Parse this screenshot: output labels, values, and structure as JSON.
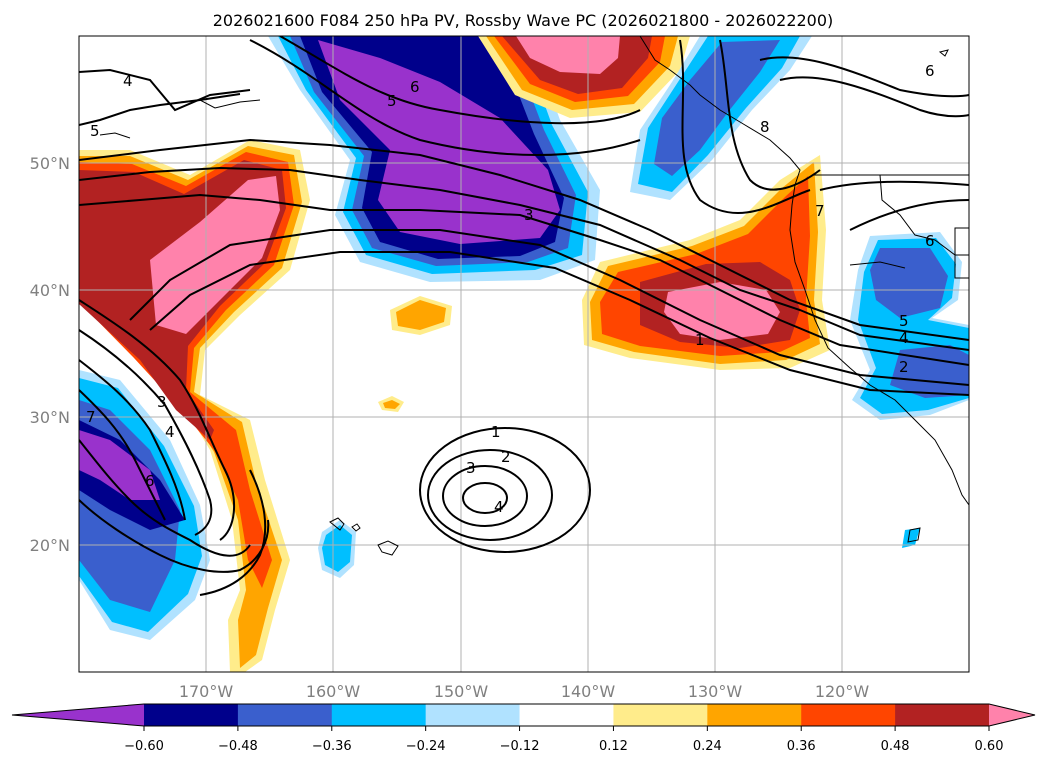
{
  "title": "2026021600 F084 250 hPa PV, Rossby Wave PC (2026021800 - 2026022200)",
  "map": {
    "lon_range": [
      -180,
      -110
    ],
    "lat_range": [
      10,
      60
    ],
    "lon_ticks": [
      "170°W",
      "160°W",
      "150°W",
      "140°W",
      "130°W",
      "120°W"
    ],
    "lat_ticks": [
      "50°N",
      "40°N",
      "30°N",
      "20°N"
    ],
    "grid": true
  },
  "colorbar": {
    "labels": [
      "−0.60",
      "−0.48",
      "−0.36",
      "−0.24",
      "−0.12",
      "0.12",
      "0.24",
      "0.36",
      "0.48",
      "0.60"
    ],
    "colors": [
      "#9932cc",
      "#00008b",
      "#3a5fcd",
      "#00bfff",
      "#b0e2ff",
      "#ffffff",
      "#ffec8b",
      "#ffa500",
      "#ff4500",
      "#b22222",
      "#ff82ab"
    ],
    "extend": "both"
  },
  "contour_labels": [
    "4",
    "5",
    "6",
    "5",
    "3",
    "8",
    "6",
    "7",
    "1",
    "6",
    "5",
    "4",
    "2",
    "1",
    "2",
    "3",
    "4",
    "3",
    "4",
    "6",
    "7"
  ]
}
